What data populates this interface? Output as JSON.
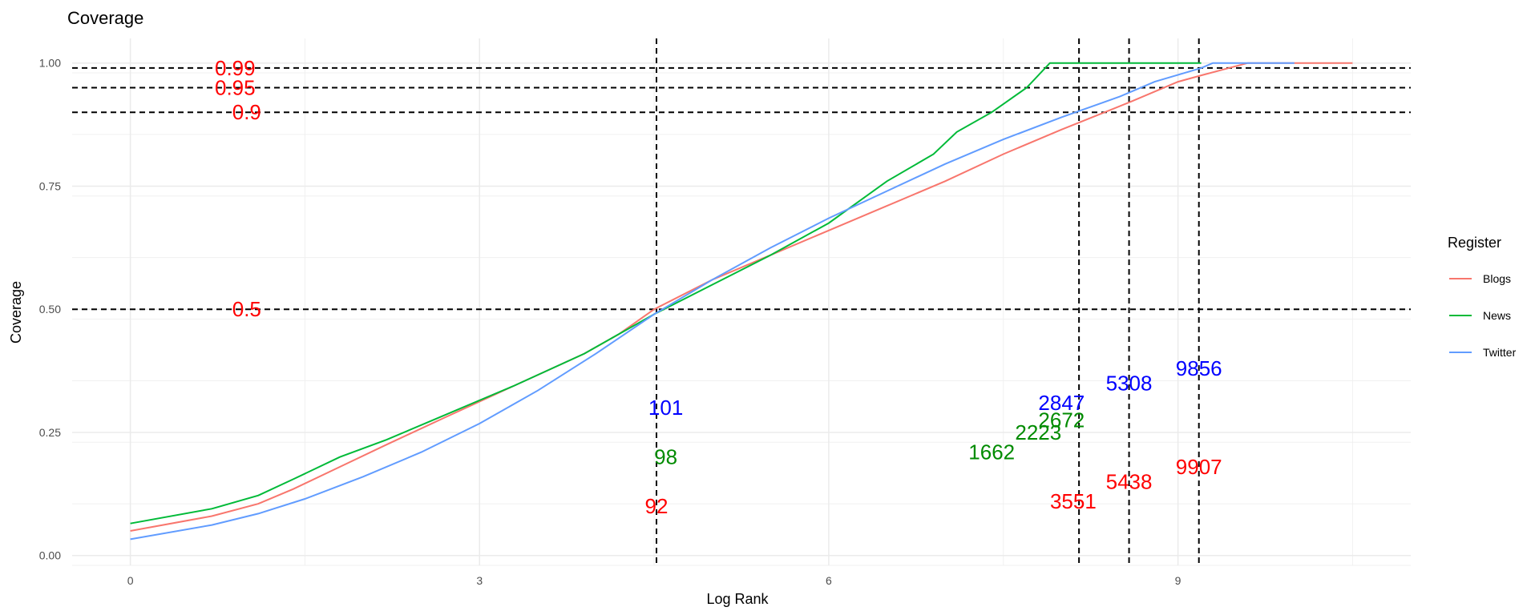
{
  "chart_data": {
    "type": "line",
    "title": "Coverage",
    "xlabel": "Log Rank",
    "ylabel": "Coverage",
    "xlim": [
      -0.5,
      11.0
    ],
    "ylim": [
      -0.02,
      1.05
    ],
    "x_ticks": [
      0,
      3,
      6,
      9
    ],
    "y_ticks": [
      0.0,
      0.25,
      0.5,
      0.75,
      1.0
    ],
    "y_tick_labels": [
      "0.00",
      "0.25",
      "0.50",
      "0.75",
      "1.00"
    ],
    "grid": true,
    "legend": {
      "title": "Register",
      "placement": "right"
    },
    "series": [
      {
        "name": "Blogs",
        "color": "#F8766D",
        "points": [
          [
            0,
            0.05
          ],
          [
            0.7,
            0.08
          ],
          [
            1.1,
            0.105
          ],
          [
            1.4,
            0.135
          ],
          [
            1.8,
            0.18
          ],
          [
            2.2,
            0.225
          ],
          [
            2.7,
            0.28
          ],
          [
            3.3,
            0.345
          ],
          [
            3.9,
            0.41
          ],
          [
            4.2,
            0.45
          ],
          [
            4.5,
            0.5
          ],
          [
            5.0,
            0.56
          ],
          [
            5.5,
            0.61
          ],
          [
            6.0,
            0.66
          ],
          [
            6.5,
            0.71
          ],
          [
            7.0,
            0.76
          ],
          [
            7.5,
            0.815
          ],
          [
            8.0,
            0.865
          ],
          [
            8.18,
            0.882
          ],
          [
            8.6,
            0.922
          ],
          [
            9.0,
            0.962
          ],
          [
            9.2,
            0.975
          ],
          [
            9.6,
            1.0
          ],
          [
            10.5,
            1.0
          ]
        ]
      },
      {
        "name": "News",
        "color": "#00BA38",
        "points": [
          [
            0,
            0.065
          ],
          [
            0.7,
            0.095
          ],
          [
            1.1,
            0.122
          ],
          [
            1.4,
            0.155
          ],
          [
            1.8,
            0.2
          ],
          [
            2.2,
            0.235
          ],
          [
            2.7,
            0.285
          ],
          [
            3.3,
            0.345
          ],
          [
            3.9,
            0.41
          ],
          [
            4.2,
            0.45
          ],
          [
            4.5,
            0.49
          ],
          [
            5.0,
            0.55
          ],
          [
            5.5,
            0.61
          ],
          [
            6.0,
            0.675
          ],
          [
            6.5,
            0.76
          ],
          [
            6.9,
            0.815
          ],
          [
            7.1,
            0.86
          ],
          [
            7.4,
            0.9
          ],
          [
            7.7,
            0.95
          ],
          [
            7.9,
            1.0
          ],
          [
            8.5,
            1.0
          ],
          [
            9.2,
            1.0
          ]
        ]
      },
      {
        "name": "Twitter",
        "color": "#619CFF",
        "points": [
          [
            0,
            0.033
          ],
          [
            0.7,
            0.062
          ],
          [
            1.1,
            0.085
          ],
          [
            1.5,
            0.115
          ],
          [
            2.0,
            0.16
          ],
          [
            2.5,
            0.21
          ],
          [
            3.0,
            0.268
          ],
          [
            3.5,
            0.335
          ],
          [
            4.0,
            0.41
          ],
          [
            4.5,
            0.49
          ],
          [
            5.0,
            0.56
          ],
          [
            5.5,
            0.625
          ],
          [
            6.0,
            0.685
          ],
          [
            6.5,
            0.74
          ],
          [
            7.0,
            0.795
          ],
          [
            7.5,
            0.845
          ],
          [
            8.0,
            0.89
          ],
          [
            8.5,
            0.932
          ],
          [
            8.8,
            0.962
          ],
          [
            9.2,
            0.99
          ],
          [
            9.3,
            1.0
          ],
          [
            10.0,
            1.0
          ]
        ]
      }
    ],
    "hlines": [
      0.5,
      0.9,
      0.95,
      0.99
    ],
    "vlines": [
      4.52,
      8.15,
      8.58,
      9.18
    ],
    "y_annotations": [
      {
        "text": "0.99",
        "y": 0.99,
        "x": 0.9,
        "color": "#FF0000"
      },
      {
        "text": "0.95",
        "y": 0.95,
        "x": 0.9,
        "color": "#FF0000"
      },
      {
        "text": "0.9",
        "y": 0.9,
        "x": 1.0,
        "color": "#FF0000"
      },
      {
        "text": "0.5",
        "y": 0.5,
        "x": 1.0,
        "color": "#FF0000"
      }
    ],
    "rank_annotations": [
      {
        "text": "101",
        "x": 4.6,
        "y": 0.3,
        "color": "#0000FF"
      },
      {
        "text": "98",
        "x": 4.6,
        "y": 0.2,
        "color": "#008B00"
      },
      {
        "text": "92",
        "x": 4.52,
        "y": 0.1,
        "color": "#FF0000"
      },
      {
        "text": "2847",
        "x": 8.0,
        "y": 0.31,
        "color": "#0000FF"
      },
      {
        "text": "2672",
        "x": 8.0,
        "y": 0.275,
        "color": "#008B00"
      },
      {
        "text": "2223",
        "x": 7.8,
        "y": 0.25,
        "color": "#008B00"
      },
      {
        "text": "1662",
        "x": 7.4,
        "y": 0.21,
        "color": "#008B00"
      },
      {
        "text": "3551",
        "x": 8.1,
        "y": 0.11,
        "color": "#FF0000"
      },
      {
        "text": "5308",
        "x": 8.58,
        "y": 0.35,
        "color": "#0000FF"
      },
      {
        "text": "5438",
        "x": 8.58,
        "y": 0.15,
        "color": "#FF0000"
      },
      {
        "text": "9856",
        "x": 9.18,
        "y": 0.38,
        "color": "#0000FF"
      },
      {
        "text": "9907",
        "x": 9.18,
        "y": 0.18,
        "color": "#FF0000"
      }
    ]
  }
}
